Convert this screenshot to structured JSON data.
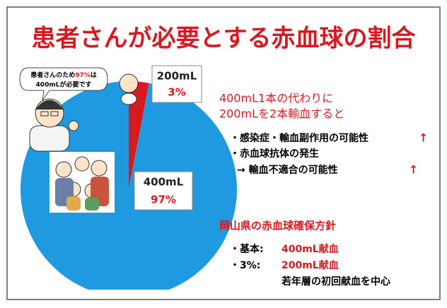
{
  "chart_data": {
    "type": "pie",
    "title": "患者さんが必要とする赤血球の割合",
    "categories": [
      "400mL",
      "200mL"
    ],
    "values": [
      97,
      3
    ],
    "value_labels": [
      "97%",
      "3%"
    ],
    "colors": [
      "#1f9ae0",
      "#d71920"
    ]
  },
  "speech_bubble": {
    "line1": [
      "患者さんのため",
      "97%",
      "は"
    ],
    "line2": "400mLが必要です"
  },
  "explanation": {
    "lines": [
      "400mL1本の代わりに",
      "200mLを2本輸血すると"
    ],
    "effects": [
      "・感染症・輸血副作用の可能性",
      "・赤血球抗体の発生",
      "→ 輸血不適合の可能性"
    ],
    "arrows": [
      "↑",
      "↑"
    ]
  },
  "policy": {
    "title": "岡山県の赤血球確保方針",
    "items": [
      {
        "label": "・基本:",
        "value": "400mL献血"
      },
      {
        "label": "・3%:",
        "value": "200mL献血",
        "note": "若年層の初回献血を中心"
      }
    ]
  }
}
